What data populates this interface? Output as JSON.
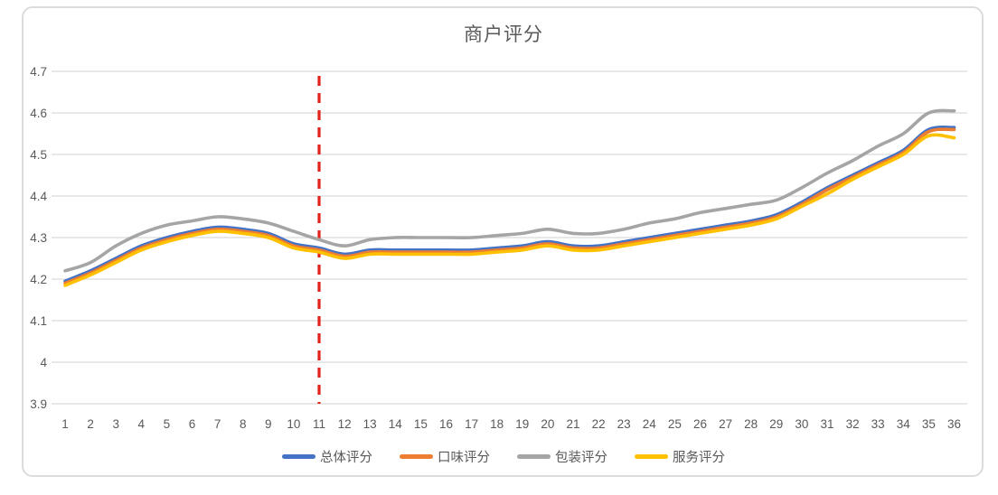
{
  "text_color": "#595959",
  "card": {
    "background": "#ffffff",
    "border_color": "#dcdcdc"
  },
  "chart_data": {
    "type": "line",
    "title": "商户评分",
    "xlabel": "",
    "ylabel": "",
    "ylim": [
      3.9,
      4.7
    ],
    "grid": true,
    "gridline_color": "#d9d9d9",
    "legend_position": "bottom",
    "y_ticks": [
      "4.7",
      "4.6",
      "4.5",
      "4.4",
      "4.3",
      "4.2",
      "4.1",
      "4",
      "3.9"
    ],
    "x": [
      1,
      2,
      3,
      4,
      5,
      6,
      7,
      8,
      9,
      10,
      11,
      12,
      13,
      14,
      15,
      16,
      17,
      18,
      19,
      20,
      21,
      22,
      23,
      24,
      25,
      26,
      27,
      28,
      29,
      30,
      31,
      32,
      33,
      34,
      35,
      36
    ],
    "series": [
      {
        "key": "overall-rating",
        "name": "总体评分",
        "color": "#4472C4",
        "values": [
          4.195,
          4.22,
          4.25,
          4.28,
          4.3,
          4.315,
          4.325,
          4.32,
          4.31,
          4.285,
          4.275,
          4.26,
          4.27,
          4.27,
          4.27,
          4.27,
          4.27,
          4.275,
          4.28,
          4.29,
          4.28,
          4.28,
          4.29,
          4.3,
          4.31,
          4.32,
          4.33,
          4.34,
          4.355,
          4.385,
          4.42,
          4.45,
          4.48,
          4.51,
          4.56,
          4.565
        ]
      },
      {
        "key": "taste-rating",
        "name": "口味评分",
        "color": "#ED7D31",
        "values": [
          4.19,
          4.215,
          4.245,
          4.275,
          4.295,
          4.31,
          4.32,
          4.315,
          4.305,
          4.28,
          4.27,
          4.255,
          4.265,
          4.265,
          4.265,
          4.265,
          4.265,
          4.27,
          4.275,
          4.285,
          4.275,
          4.275,
          4.285,
          4.295,
          4.305,
          4.315,
          4.325,
          4.335,
          4.35,
          4.38,
          4.415,
          4.445,
          4.475,
          4.505,
          4.555,
          4.56
        ]
      },
      {
        "key": "packaging-rating",
        "name": "包装评分",
        "color": "#A5A5A5",
        "values": [
          4.22,
          4.24,
          4.28,
          4.31,
          4.33,
          4.34,
          4.35,
          4.345,
          4.335,
          4.315,
          4.295,
          4.28,
          4.295,
          4.3,
          4.3,
          4.3,
          4.3,
          4.305,
          4.31,
          4.32,
          4.31,
          4.31,
          4.32,
          4.335,
          4.345,
          4.36,
          4.37,
          4.38,
          4.39,
          4.42,
          4.455,
          4.485,
          4.52,
          4.55,
          4.6,
          4.605
        ]
      },
      {
        "key": "service-rating",
        "name": "服务评分",
        "color": "#FFC000",
        "values": [
          4.185,
          4.21,
          4.24,
          4.27,
          4.29,
          4.305,
          4.315,
          4.31,
          4.3,
          4.275,
          4.265,
          4.25,
          4.26,
          4.26,
          4.26,
          4.26,
          4.26,
          4.265,
          4.27,
          4.28,
          4.27,
          4.27,
          4.28,
          4.29,
          4.3,
          4.31,
          4.32,
          4.33,
          4.345,
          4.375,
          4.405,
          4.44,
          4.47,
          4.5,
          4.545,
          4.54
        ]
      }
    ],
    "annotation": {
      "type": "vertical-dashed-line",
      "x": 11,
      "color": "#E2231A"
    }
  }
}
